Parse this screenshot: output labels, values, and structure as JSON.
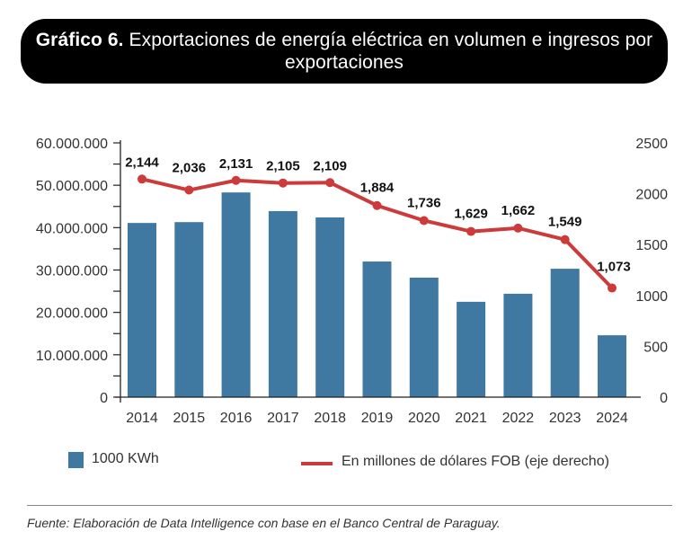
{
  "title": {
    "bold": "Gráfico 6.",
    "rest": " Exportaciones de energía eléctrica en volumen e ingresos por exportaciones"
  },
  "colors": {
    "bar": "#3f78a0",
    "line": "#cc3a3a",
    "axis": "#222222",
    "title_bg": "#000000"
  },
  "chart_data": {
    "type": "bar+line",
    "title": "Exportaciones de energía eléctrica en volumen e ingresos por exportaciones",
    "categories": [
      "2014",
      "2015",
      "2016",
      "2017",
      "2018",
      "2019",
      "2020",
      "2021",
      "2022",
      "2023",
      "2024"
    ],
    "series": [
      {
        "name": "1000 KWh",
        "type": "bar",
        "axis": "left",
        "values": [
          41100000,
          41300000,
          48300000,
          43900000,
          42400000,
          32000000,
          28200000,
          22500000,
          24400000,
          30300000,
          14600000
        ]
      },
      {
        "name": "En millones de dólares FOB (eje derecho)",
        "type": "line",
        "axis": "right",
        "values": [
          2144,
          2036,
          2131,
          2105,
          2109,
          1884,
          1736,
          1629,
          1662,
          1549,
          1073
        ],
        "labels": [
          "2,144",
          "2,036",
          "2,131",
          "2,105",
          "2,109",
          "1,884",
          "1,736",
          "1,629",
          "1,662",
          "1,549",
          "1,073"
        ]
      }
    ],
    "left_axis": {
      "ylim": [
        0,
        60000000
      ],
      "ticks": [
        0,
        10000000,
        20000000,
        30000000,
        40000000,
        50000000,
        60000000
      ],
      "tick_labels": [
        "0",
        "10.000.000",
        "20.000.000",
        "30.000.000",
        "40.000.000",
        "50.000.000",
        "60.000.000"
      ],
      "minor_step": 5000000
    },
    "right_axis": {
      "ylim": [
        0,
        2500
      ],
      "ticks": [
        0,
        500,
        1000,
        1500,
        2000,
        2500
      ],
      "tick_labels": [
        "0",
        "500",
        "1000",
        "1500",
        "2000",
        "2500"
      ]
    },
    "xlabel": "",
    "ylabel": "",
    "grid": false,
    "legend": "bottom"
  },
  "legend": {
    "bar_label": "1000 KWh",
    "line_label": "En millones de dólares FOB (eje derecho)"
  },
  "source": "Fuente: Elaboración de Data Intelligence con base en el Banco Central de Paraguay."
}
